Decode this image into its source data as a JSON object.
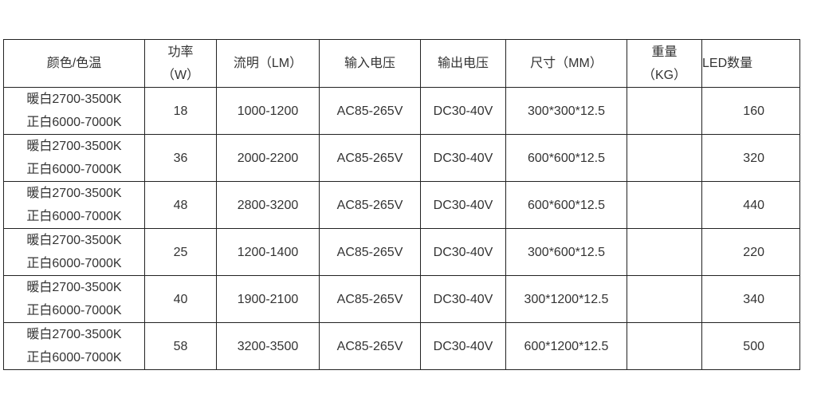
{
  "headers": [
    "颜色/色温",
    "功率（W）",
    "流明（LM）",
    "输入电压",
    "输出电压",
    "尺寸（MM）",
    "重量（KG）",
    "LED数量"
  ],
  "header_lines": {
    "power": [
      "功率",
      "（W）"
    ],
    "weight": [
      "重量",
      "（KG）"
    ]
  },
  "rows": [
    {
      "warm": "暖白2700-3500K",
      "cool": "正白6000-7000K",
      "power": "18",
      "lumen": "1000-1200",
      "input": "AC85-265V",
      "output": "DC30-40V",
      "size": "300*300*12.5",
      "weight": "",
      "led": "160"
    },
    {
      "warm": "暖白2700-3500K",
      "cool": "正白6000-7000K",
      "power": "36",
      "lumen": "2000-2200",
      "input": "AC85-265V",
      "output": "DC30-40V",
      "size": "600*600*12.5",
      "weight": "",
      "led": "320"
    },
    {
      "warm": "暖白2700-3500K",
      "cool": "正白6000-7000K",
      "power": "48",
      "lumen": "2800-3200",
      "input": "AC85-265V",
      "output": "DC30-40V",
      "size": "600*600*12.5",
      "weight": "",
      "led": "440"
    },
    {
      "warm": "暖白2700-3500K",
      "cool": "正白6000-7000K",
      "power": "25",
      "lumen": "1200-1400",
      "input": "AC85-265V",
      "output": "DC30-40V",
      "size": "300*600*12.5",
      "weight": "",
      "led": "220"
    },
    {
      "warm": "暖白2700-3500K",
      "cool": "正白6000-7000K",
      "power": "40",
      "lumen": "1900-2100",
      "input": "AC85-265V",
      "output": "DC30-40V",
      "size": "300*1200*12.5",
      "weight": "",
      "led": "340"
    },
    {
      "warm": "暖白2700-3500K",
      "cool": "正白6000-7000K",
      "power": "58",
      "lumen": "3200-3500",
      "input": "AC85-265V",
      "output": "DC30-40V",
      "size": "600*1200*12.5",
      "weight": "",
      "led": "500"
    }
  ]
}
